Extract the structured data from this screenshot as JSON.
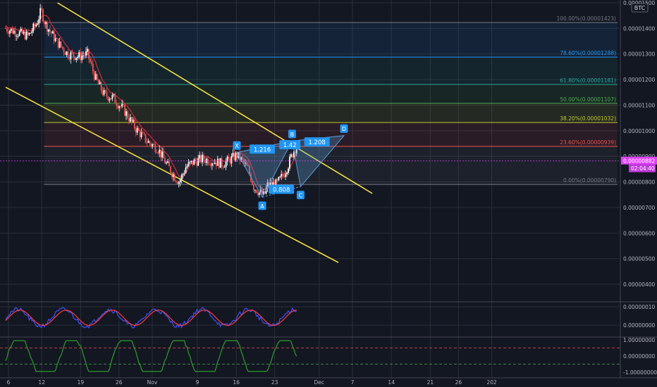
{
  "colors": {
    "background": "#131722",
    "grid": "#2a2e39",
    "axis_text": "#b2b5be",
    "up_candle": "#ffffff",
    "down_candle": "#ef5350",
    "ma_line": "#c22a3a",
    "channel": "#ffeb3b",
    "harmonic_fill": "#5b9bd5",
    "harmonic_label": "#2196f3",
    "price_label": "#e040fb",
    "osc_blue": "#3f51ff",
    "osc_red": "#ff3a3a",
    "osc_green": "#2e9b2e"
  },
  "chart_data": {
    "type": "candlestick",
    "symbol": "BTC",
    "y_axis": {
      "range": [
        3.45e-06,
        1.5e-05
      ],
      "ticks": [
        {
          "label": "0.00001500",
          "v": 1.5e-05
        },
        {
          "label": "0.00001400",
          "v": 1.4e-05
        },
        {
          "label": "0.00001300",
          "v": 1.3e-05
        },
        {
          "label": "0.00001200",
          "v": 1.2e-05
        },
        {
          "label": "0.00001100",
          "v": 1.1e-05
        },
        {
          "label": "0.00001000",
          "v": 1e-05
        },
        {
          "label": "0.00000900",
          "v": 9e-06
        },
        {
          "label": "0.00000800",
          "v": 8e-06
        },
        {
          "label": "0.00000700",
          "v": 7e-06
        },
        {
          "label": "0.00000600",
          "v": 6e-06
        },
        {
          "label": "0.00000500",
          "v": 5e-06
        },
        {
          "label": "0.00000400",
          "v": 4e-06
        }
      ]
    },
    "x_axis": {
      "range": [
        0,
        75
      ],
      "ticks": [
        {
          "label": "6",
          "t": 0.5
        },
        {
          "label": "12",
          "t": 6.4
        },
        {
          "label": "19",
          "t": 13.3
        },
        {
          "label": "26",
          "t": 20.1
        },
        {
          "label": "Nov",
          "t": 26.0
        },
        {
          "label": "9",
          "t": 34.0
        },
        {
          "label": "16",
          "t": 40.9
        },
        {
          "label": "23",
          "t": 47.7
        },
        {
          "label": "Dec",
          "t": 55.6
        },
        {
          "label": "7",
          "t": 61.5
        },
        {
          "label": "14",
          "t": 68.4
        },
        {
          "label": "21",
          "t": 75.3
        },
        {
          "label": "26",
          "t": 80.3
        },
        {
          "label": "202",
          "t": 86.2
        }
      ]
    },
    "current_price": {
      "label": "0.00000882",
      "v": 8.82e-06,
      "countdown": "02:04:40"
    },
    "fibonacci": {
      "t_start": 6.8,
      "t_end": 86.0,
      "levels": [
        {
          "label": "100.00%(0.00001423)",
          "v": 1.423e-05,
          "color": "#787b86"
        },
        {
          "label": "78.60%(0.00001288)",
          "v": 1.288e-05,
          "color": "#2196f3"
        },
        {
          "label": "61.80%(0.00001181)",
          "v": 1.181e-05,
          "color": "#26a69a"
        },
        {
          "label": "50.00%(0.00001107)",
          "v": 1.107e-05,
          "color": "#4caf50"
        },
        {
          "label": "38.20%(0.00001032)",
          "v": 1.032e-05,
          "color": "#c0ca33"
        },
        {
          "label": "23.60%(0.00000939)",
          "v": 9.39e-06,
          "color": "#ef5350"
        },
        {
          "label": "0.00%(0.00000790)",
          "v": 7.9e-06,
          "color": "#787b86"
        }
      ]
    },
    "channel_lines": [
      {
        "t1": 9.2,
        "v1": 1.5e-05,
        "t2": 65.0,
        "v2": 7.55e-06
      },
      {
        "t1": 0.0,
        "v1": 1.17e-05,
        "t2": 59.0,
        "v2": 4.85e-06
      }
    ],
    "harmonic": {
      "points": [
        {
          "name": "X",
          "t": 41.0,
          "v": 9.15e-06
        },
        {
          "name": "A",
          "t": 45.5,
          "v": 7.4e-06
        },
        {
          "name": "B",
          "t": 50.8,
          "v": 9.6e-06
        },
        {
          "name": "C",
          "t": 52.3,
          "v": 7.82e-06
        },
        {
          "name": "D",
          "t": 60.0,
          "v": 9.81e-06
        }
      ],
      "ratios": [
        {
          "label": "1.216",
          "t": 45.5,
          "v": 9.27e-06
        },
        {
          "label": "1.42",
          "t": 50.4,
          "v": 9.44e-06
        },
        {
          "label": "0.808",
          "t": 48.9,
          "v": 7.7e-06
        },
        {
          "label": "1.208",
          "t": 55.2,
          "v": 9.55e-06
        }
      ]
    },
    "candles": {
      "count": 211,
      "t_start": 0.0,
      "t_end": 51.6,
      "anchors": [
        [
          0,
          1.4e-05
        ],
        [
          4,
          1.37e-05
        ],
        [
          5.5,
          1.42e-05
        ],
        [
          6.3,
          1.47e-05
        ],
        [
          7,
          1.42e-05
        ],
        [
          9,
          1.35e-05
        ],
        [
          11,
          1.3e-05
        ],
        [
          13,
          1.29e-05
        ],
        [
          14.5,
          1.3e-05
        ],
        [
          16,
          1.2e-05
        ],
        [
          17.5,
          1.14e-05
        ],
        [
          19,
          1.13e-05
        ],
        [
          21,
          1.08e-05
        ],
        [
          23,
          1.01e-05
        ],
        [
          25,
          9.6e-06
        ],
        [
          27,
          9.3e-06
        ],
        [
          28.5,
          8.7e-06
        ],
        [
          30,
          8.2e-06
        ],
        [
          30.8,
          8e-06
        ],
        [
          32,
          8.6e-06
        ],
        [
          33.5,
          8.8e-06
        ],
        [
          35,
          8.9e-06
        ],
        [
          37,
          8.8e-06
        ],
        [
          38.5,
          8.7e-06
        ],
        [
          40,
          8.9e-06
        ],
        [
          41,
          9.05e-06
        ],
        [
          42,
          8.8e-06
        ],
        [
          43,
          8.5e-06
        ],
        [
          44,
          7.8e-06
        ],
        [
          45,
          7.6e-06
        ],
        [
          45.8,
          7.45e-06
        ],
        [
          46.5,
          7.9e-06
        ],
        [
          48,
          7.9e-06
        ],
        [
          49,
          8.2e-06
        ],
        [
          50,
          8.6e-06
        ],
        [
          51,
          9.2e-06
        ],
        [
          51.6,
          9.4e-06
        ]
      ]
    },
    "oscillator_1": {
      "ticks": [
        {
          "label": "0.00000010",
          "v": 1.0
        },
        {
          "label": "0.00000000",
          "v": 0.0
        }
      ]
    },
    "oscillator_2": {
      "ticks": [
        {
          "label": "1.00000000",
          "v": 1.0
        },
        {
          "label": "0.00000000",
          "v": 0.0
        },
        {
          "label": "-1.00000000",
          "v": -1.0
        }
      ]
    }
  }
}
